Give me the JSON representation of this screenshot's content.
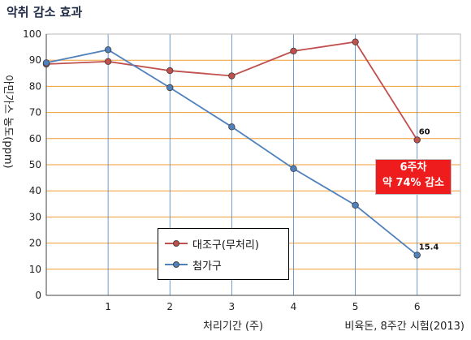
{
  "title": "악취 감소 효과",
  "chart_data": {
    "type": "line",
    "x": [
      0,
      1,
      2,
      3,
      4,
      5,
      6
    ],
    "x_tick_labels": [
      "",
      "1",
      "2",
      "3",
      "4",
      "5",
      "6"
    ],
    "xlim": [
      0,
      6.7
    ],
    "ylim": [
      0,
      100
    ],
    "y_ticks": [
      0,
      10,
      20,
      30,
      40,
      50,
      60,
      70,
      80,
      90,
      100
    ],
    "xlabel": "처리기간 (주)",
    "ylabel": "아민가스 농도(ppm)",
    "grid": true,
    "series": [
      {
        "name": "대조구(무처리)",
        "color": "#c0504d",
        "values": [
          88.5,
          89.5,
          86,
          84,
          93.5,
          97,
          59.5
        ]
      },
      {
        "name": "첨가구",
        "color": "#4f81bd",
        "values": [
          89,
          94,
          79.5,
          64.5,
          48.5,
          34.5,
          15.4
        ]
      }
    ],
    "annotations": [
      {
        "text": "60",
        "series": 0,
        "index": 6
      },
      {
        "text": "15.4",
        "series": 1,
        "index": 6
      }
    ],
    "callout": {
      "line1": "6주차",
      "line2": "약 74% 감소"
    },
    "source": "비육돈, 8주간 시험(2013)",
    "legend_position": "bottom-center"
  }
}
